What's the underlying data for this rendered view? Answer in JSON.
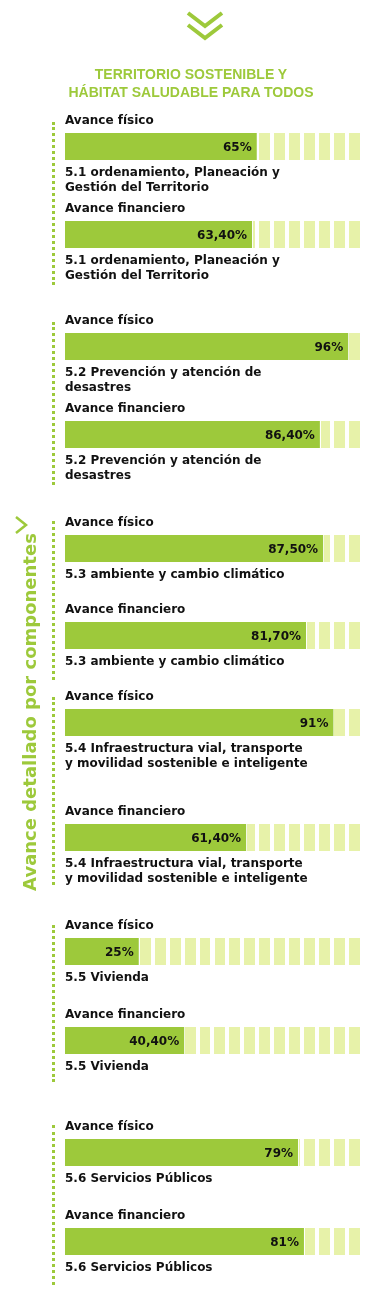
{
  "chart_data": {
    "type": "bar",
    "orientation": "horizontal",
    "title": "TERRITORIO SOSTENIBLE Y\nHÁBITAT SALUDABLE PARA TODOS",
    "ylabel": "Avance detallado por componentes",
    "categories": [
      "5.1 ordenamiento, Planeación y Gestión del Territorio",
      "5.2 Prevención y atención de desastres",
      "5.3 ambiente y cambio climático",
      "5.4 Infraestructura vial, transporte y movilidad sostenible e inteligente",
      "5.5 Vivienda",
      "5.6 Servicios Públicos"
    ],
    "series": [
      {
        "name": "Avance físico",
        "color": "#9dc93b",
        "values": [
          65,
          96,
          87.5,
          91,
          25,
          79
        ],
        "value_labels": [
          "65%",
          "96%",
          "87,50%",
          "91%",
          "25%",
          "79%"
        ]
      },
      {
        "name": "Avance financiero",
        "color": "#9dc93b",
        "values": [
          63.4,
          86.4,
          81.7,
          61.4,
          40.4,
          81
        ],
        "value_labels": [
          "63,40%",
          "86,40%",
          "81,70%",
          "61,40%",
          "40,40%",
          "81%"
        ]
      }
    ],
    "xlim": [
      0,
      100
    ],
    "tick_labels": false
  }
}
